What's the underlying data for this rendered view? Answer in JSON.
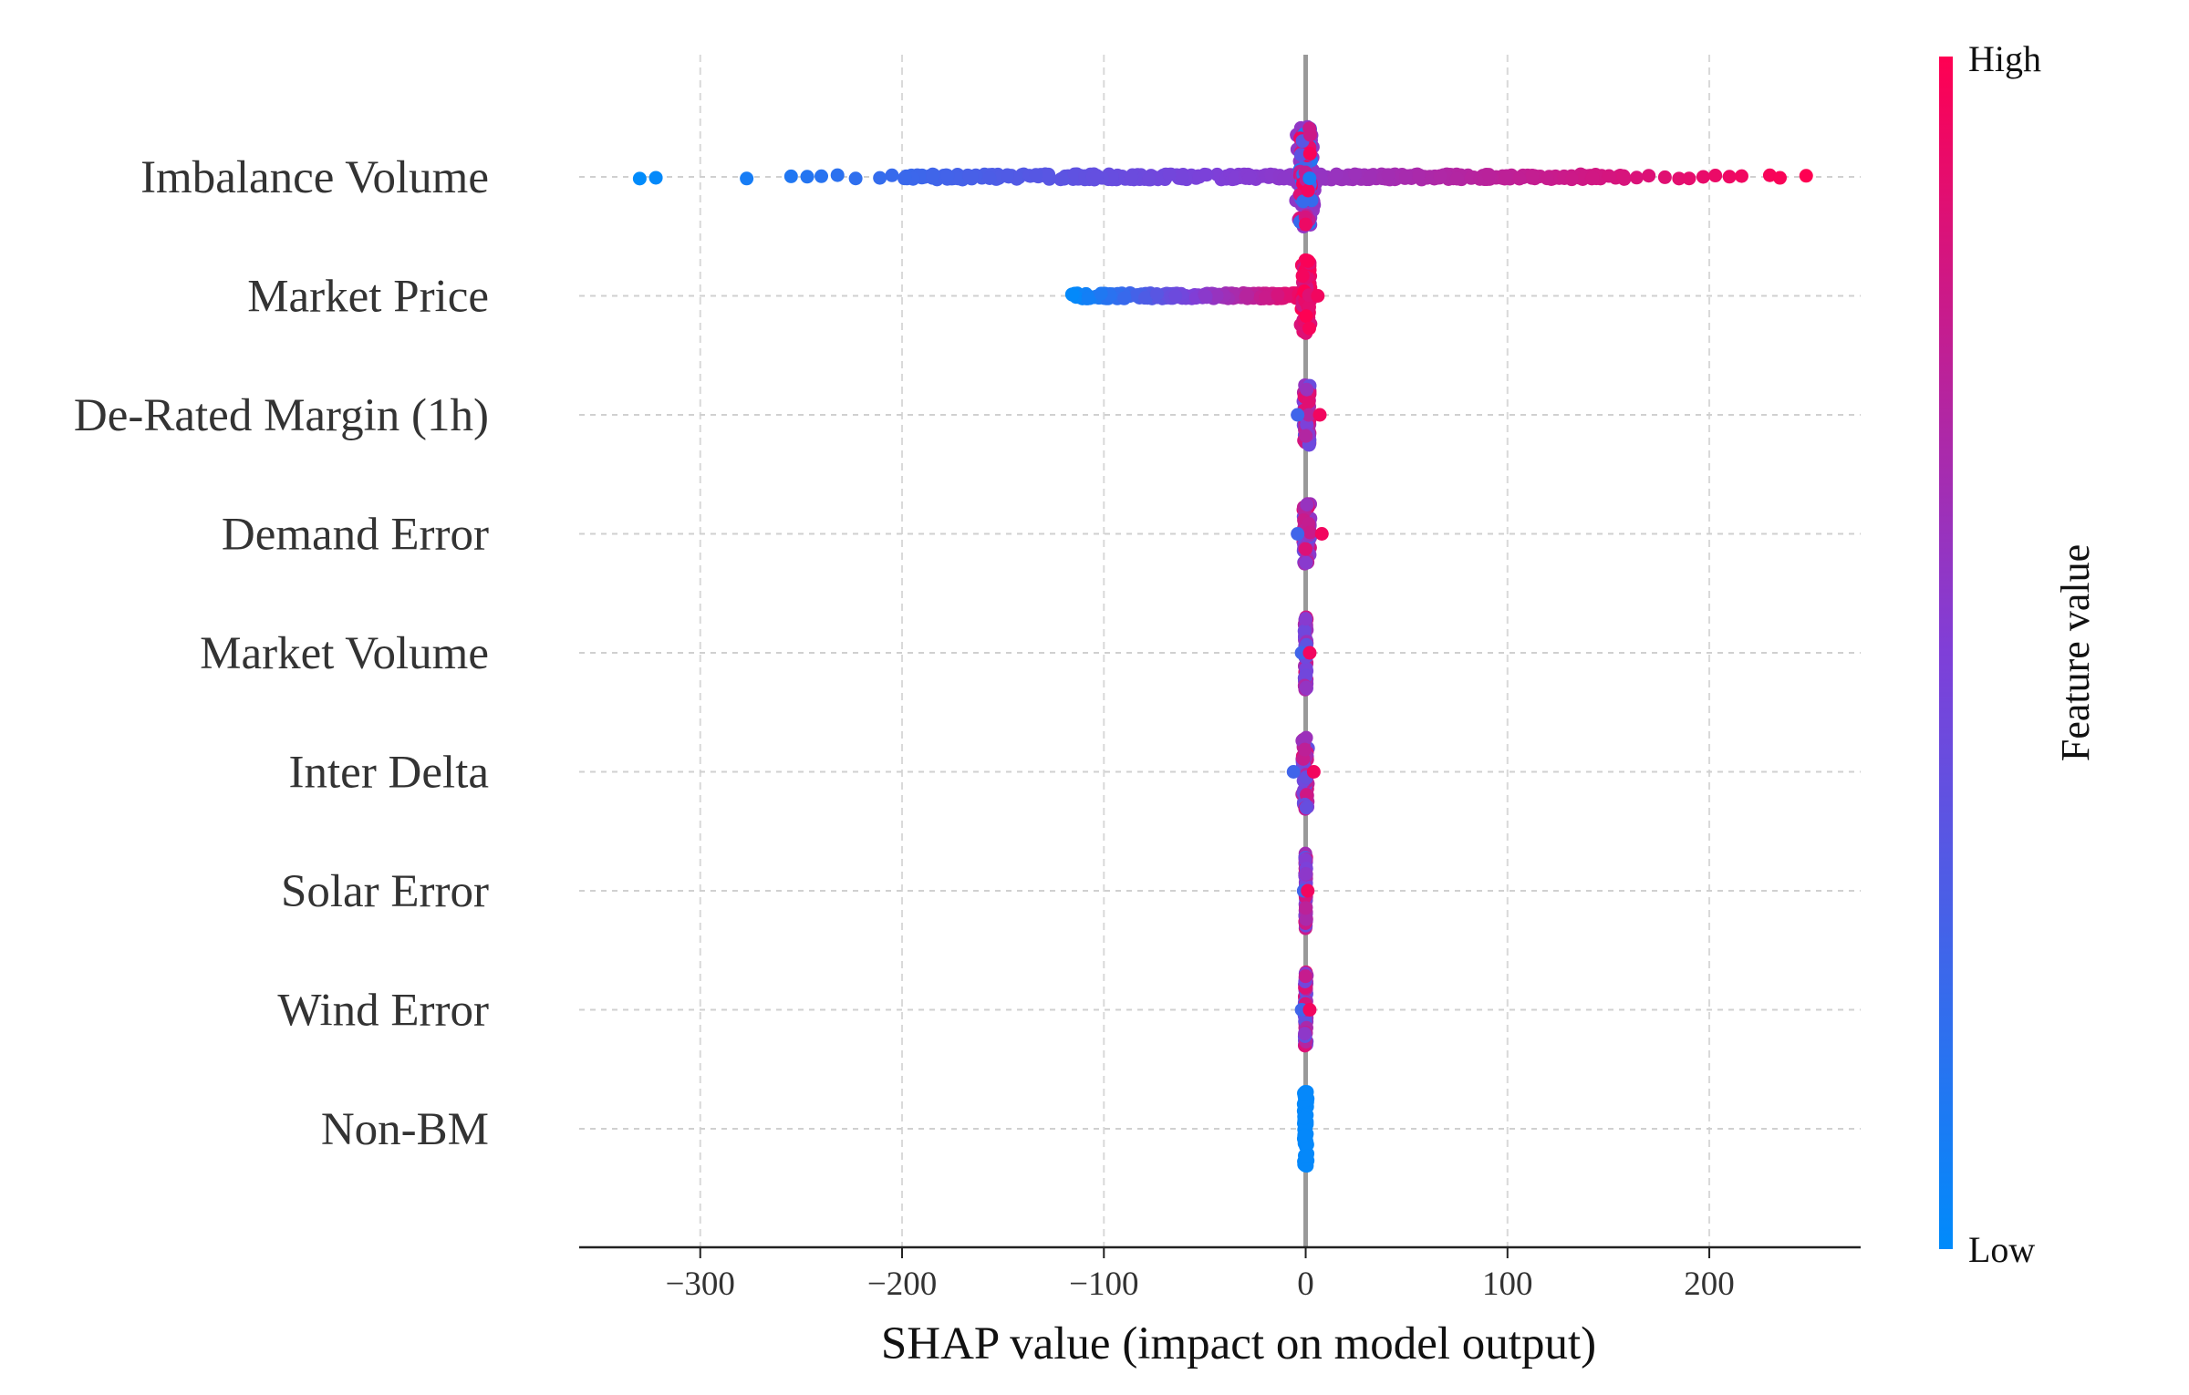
{
  "chart_data": {
    "type": "scatter",
    "subtype": "shap-beeswarm",
    "xlabel": "SHAP value (impact on model output)",
    "xlim": [
      -360,
      275
    ],
    "xticks": [
      -300,
      -200,
      -100,
      0,
      100,
      200
    ],
    "xtick_labels": [
      "−300",
      "−200",
      "−100",
      "0",
      "100",
      "200"
    ],
    "grid": true,
    "colorbar": {
      "title": "Feature value",
      "high_label": "High",
      "low_label": "Low",
      "high_color": "#ff0052",
      "mid_color": "#7f3fd8",
      "low_color": "#008bfb"
    },
    "features": [
      {
        "name": "Imbalance Volume",
        "min": -330,
        "max": 248,
        "spread": 1.0
      },
      {
        "name": "Market Price",
        "min": -117,
        "max": 7,
        "spread": 0.75
      },
      {
        "name": "De-Rated Margin (1h)",
        "min": -4,
        "max": 7,
        "spread": 0.6
      },
      {
        "name": "Demand Error",
        "min": -4,
        "max": 8,
        "spread": 0.6
      },
      {
        "name": "Market Volume",
        "min": -2,
        "max": 2,
        "spread": 0.75
      },
      {
        "name": "Inter Delta",
        "min": -6,
        "max": 4,
        "spread": 0.75
      },
      {
        "name": "Solar Error",
        "min": -1,
        "max": 1,
        "spread": 0.75
      },
      {
        "name": "Wind Error",
        "min": -2,
        "max": 2,
        "spread": 0.75
      },
      {
        "name": "Non-BM",
        "min": -1,
        "max": 1,
        "spread": 0.75
      }
    ]
  }
}
